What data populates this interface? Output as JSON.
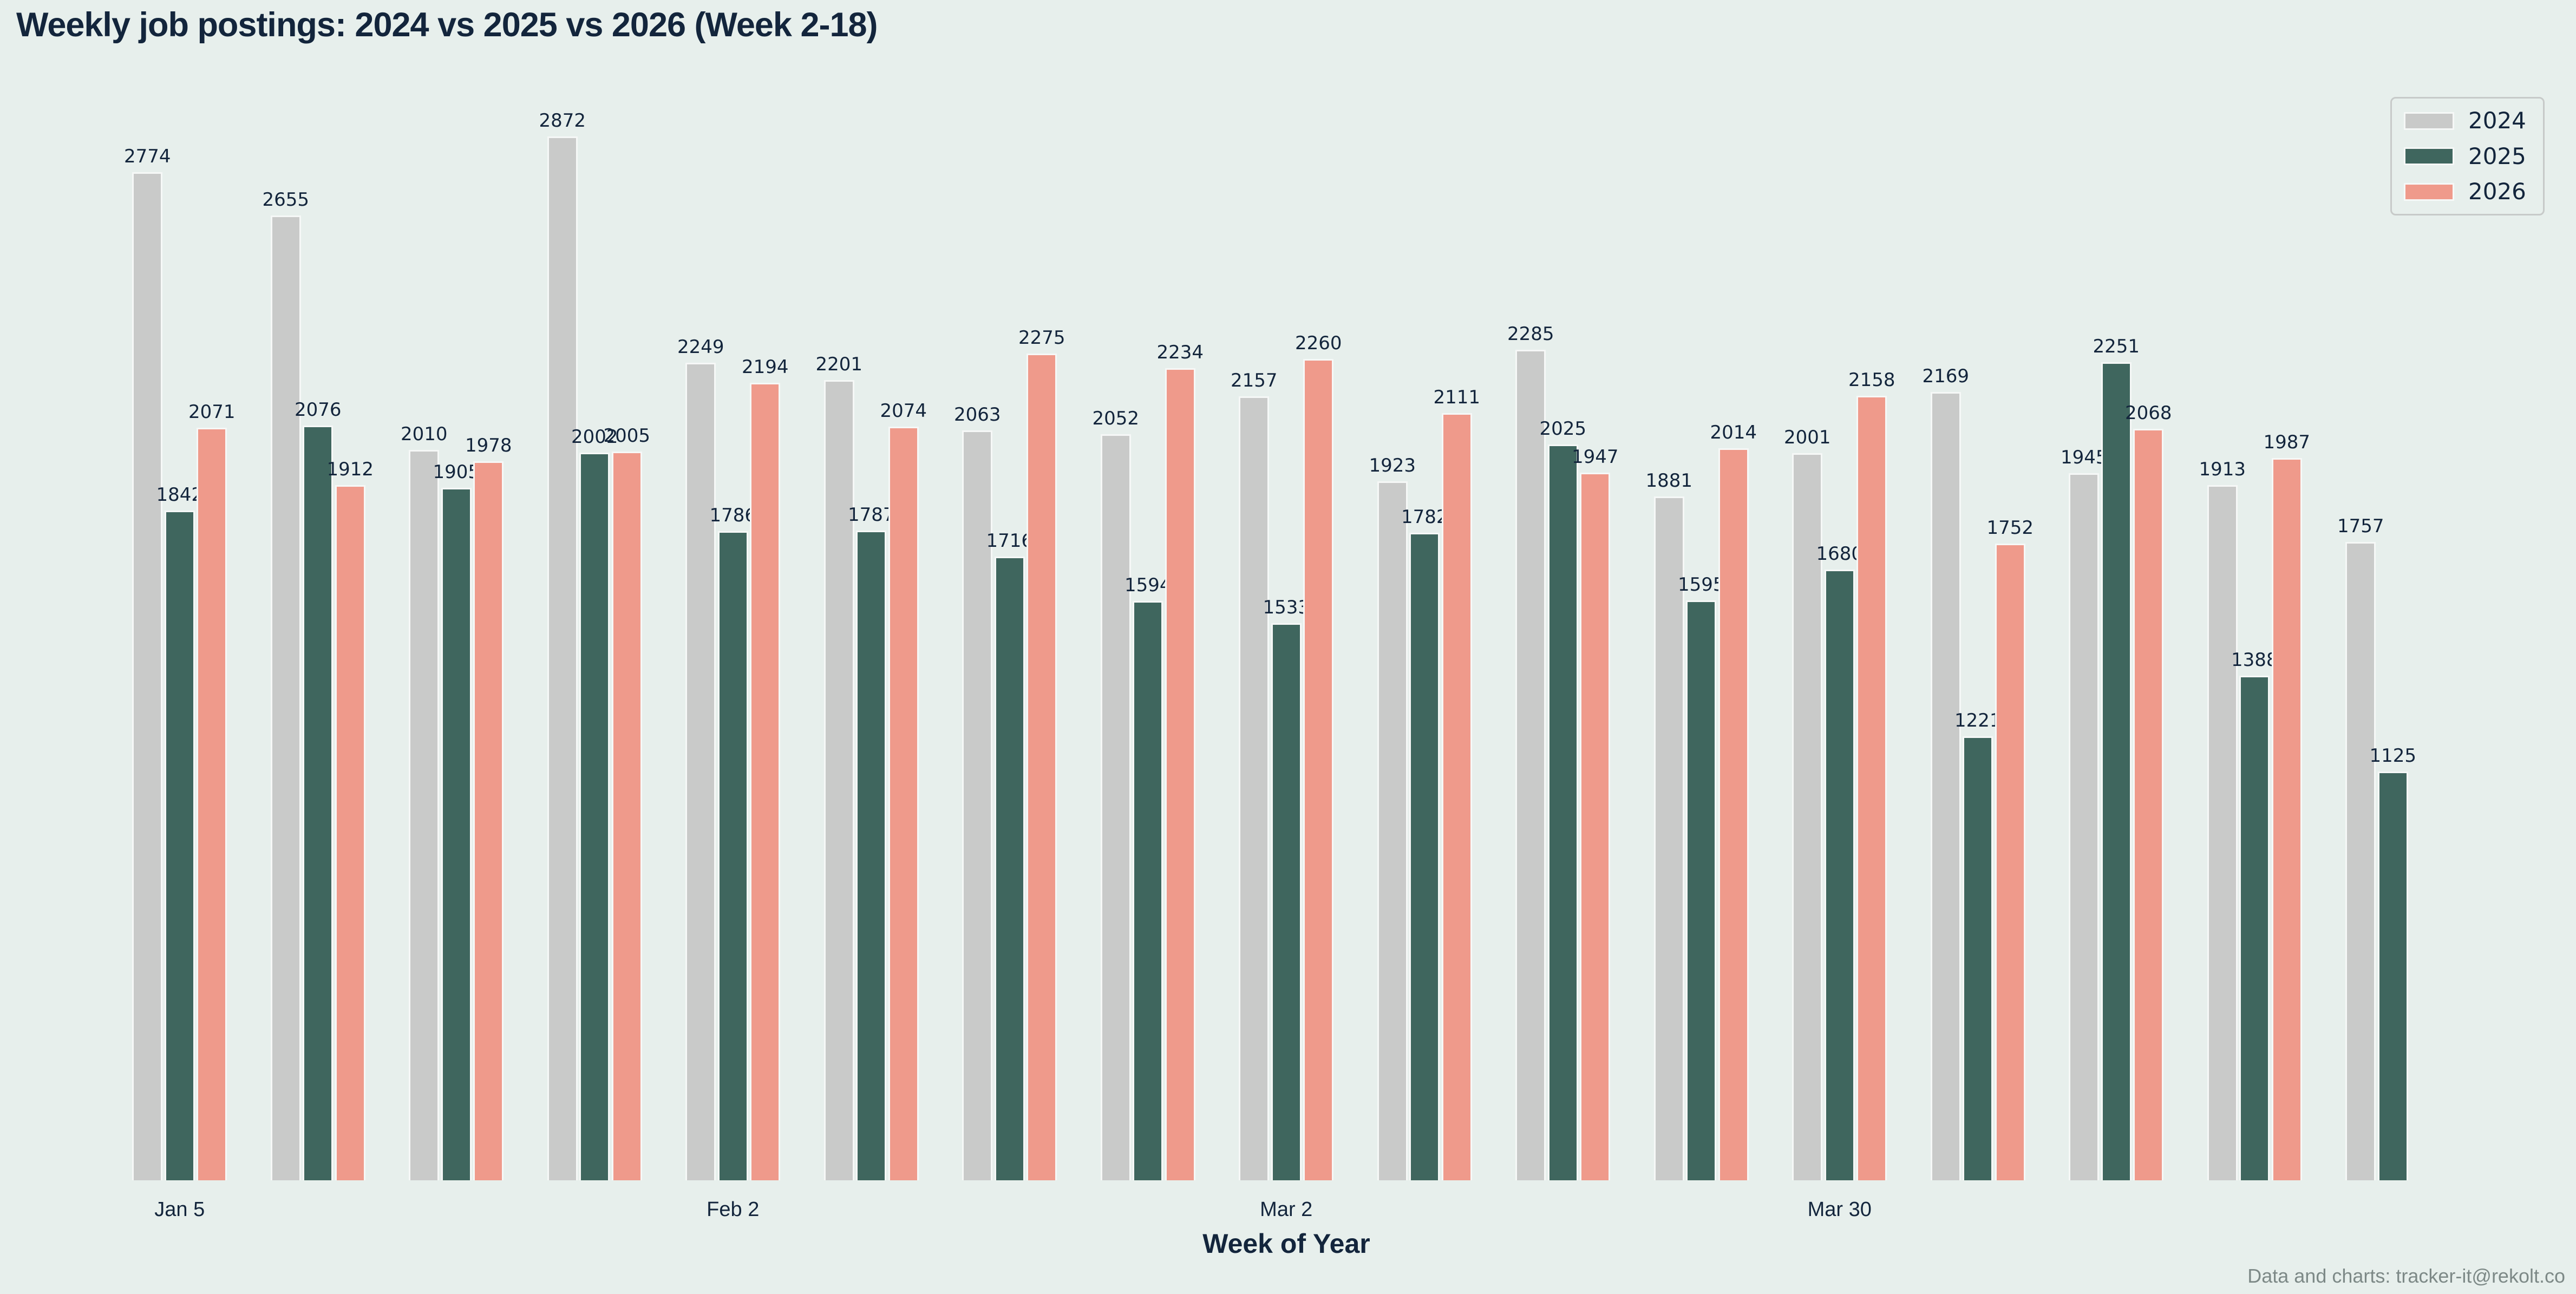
{
  "page": {
    "title": "Weekly job postings: 2024 vs 2025 vs 2026 (Week 2-18)",
    "footer": "Data and charts: tracker-it@rekolt.co",
    "background_color": "#e7efec",
    "text_color": "#13253c",
    "muted_text_color": "#7d8987"
  },
  "chart_data": {
    "type": "bar",
    "title": "Weekly job postings: 2024 vs 2025 vs 2026 (Week 2-18)",
    "xlabel": "Week of Year",
    "ylabel": "",
    "grid": false,
    "bar_value_labels": true,
    "legend_position": "upper right",
    "n_groups": 17,
    "weeks_range": "Week 2-18",
    "ylim": [
      0,
      2950
    ],
    "x_tick_labels": [
      {
        "index": 0,
        "label": "Jan 5"
      },
      {
        "index": 4,
        "label": "Feb 2"
      },
      {
        "index": 8,
        "label": "Mar 2"
      },
      {
        "index": 12,
        "label": "Mar 30"
      }
    ],
    "series": [
      {
        "name": "2024",
        "color": "#c9cac9",
        "values": [
          2774,
          2655,
          2010,
          2872,
          2249,
          2201,
          2063,
          2052,
          2157,
          1923,
          2285,
          1881,
          2001,
          2169,
          1945,
          1913,
          1757
        ]
      },
      {
        "name": "2025",
        "color": "#3f665e",
        "values": [
          1842,
          2076,
          1905,
          2002,
          1786,
          1787,
          1716,
          1594,
          1533,
          1782,
          2025,
          1595,
          1680,
          1221,
          2251,
          1388,
          1125
        ]
      },
      {
        "name": "2026",
        "color": "#ef9a8b",
        "values": [
          2071,
          1912,
          1978,
          2005,
          2194,
          2074,
          2275,
          2234,
          2260,
          2111,
          1947,
          2014,
          2158,
          1752,
          2068,
          1987,
          null
        ]
      }
    ],
    "bar_edge_color": "#f6f8f7"
  },
  "legend": {
    "items": [
      {
        "label": "2024"
      },
      {
        "label": "2025"
      },
      {
        "label": "2026"
      }
    ]
  }
}
